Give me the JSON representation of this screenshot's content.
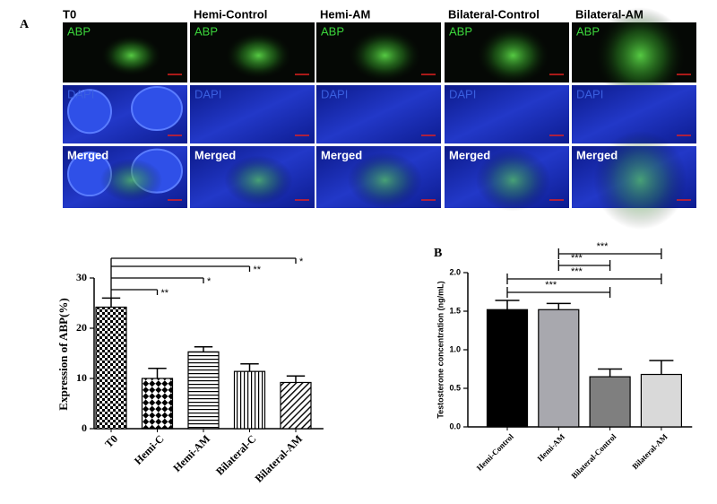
{
  "panel_labels": [
    "A",
    "B"
  ],
  "microscopy": {
    "columns": [
      "T0",
      "Hemi-Control",
      "Hemi-AM",
      "Bilateral-Control",
      "Bilateral-AM"
    ],
    "rows": [
      "ABP",
      "DAPI",
      "Merged"
    ]
  },
  "chart_data": [
    {
      "type": "bar",
      "ylabel": "Expression of ABP(%)",
      "categories": [
        "T0",
        "Hemi-C",
        "Hemi-AM",
        "Bilateral-C",
        "Bilateral-AM"
      ],
      "values": [
        24.2,
        10,
        15.3,
        11.4,
        9.2
      ],
      "errors": [
        1.8,
        2,
        1,
        1.5,
        1.3
      ],
      "patterns": [
        "checker-small",
        "checker",
        "horizontal",
        "vertical",
        "diagonal"
      ],
      "ylim": [
        0,
        30
      ],
      "yticks": [
        0,
        10,
        20,
        30
      ],
      "comparisons": [
        {
          "pair": [
            0,
            1
          ],
          "label": "**"
        },
        {
          "pair": [
            0,
            2
          ],
          "label": "*"
        },
        {
          "pair": [
            0,
            3
          ],
          "label": "**"
        },
        {
          "pair": [
            0,
            4
          ],
          "label": "*"
        }
      ]
    },
    {
      "type": "bar",
      "ylabel": "Testosterone concentration (ng/mL)",
      "categories": [
        "Hemi-Control",
        "Hemi-AM",
        "Bilateral-Control",
        "Bilateral-AM"
      ],
      "values": [
        1.52,
        1.52,
        0.65,
        0.68
      ],
      "errors": [
        0.12,
        0.08,
        0.1,
        0.18
      ],
      "colors": [
        "#000000",
        "#a8a8ae",
        "#7f7f7f",
        "#d9d9d9"
      ],
      "ylim": [
        0,
        2.0
      ],
      "yticks": [
        {
          "value": 0,
          "label": "0.0"
        },
        {
          "value": 0.5,
          "label": "0.5"
        },
        {
          "value": 1,
          "label": "1.0"
        },
        {
          "value": 1.5,
          "label": "1.5"
        },
        {
          "value": 2,
          "label": "2.0"
        }
      ],
      "comparisons": [
        {
          "pair": [
            0,
            2
          ],
          "label": "***"
        },
        {
          "pair": [
            0,
            3
          ],
          "label": "***"
        },
        {
          "pair": [
            1,
            2
          ],
          "label": "***"
        },
        {
          "pair": [
            1,
            3
          ],
          "label": "***"
        }
      ]
    }
  ]
}
